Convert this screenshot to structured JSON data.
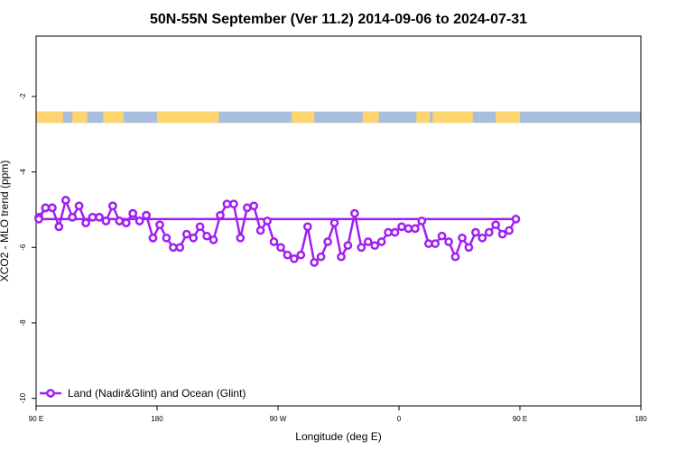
{
  "chart_data": {
    "type": "line",
    "title": "50N-55N September (Ver 11.2)   2014-09-06 to 2024-07-31",
    "xlabel": "Longitude (deg E)",
    "ylabel": "XCO2 - MLO trend (ppm)",
    "x_tick_labels": [
      "90 E",
      "180",
      "90 W",
      "0",
      "90 E",
      "180"
    ],
    "y_ticks": [
      -2,
      -4,
      -6,
      -8,
      -10
    ],
    "ylim": [
      -10.2,
      -0.4
    ],
    "grid": false,
    "legend": {
      "position": "bottom-left",
      "entries": [
        "Land (Nadir&Glint) and Ocean (Glint)"
      ]
    },
    "series": [
      {
        "name": "Land (Nadir&Glint) and Ocean (Glint)",
        "color": "#a020f0",
        "x": [
          92,
          97,
          102,
          107,
          112,
          117,
          122,
          127,
          132,
          137,
          142,
          147,
          152,
          157,
          162,
          167,
          172,
          177,
          182,
          187,
          192,
          197,
          202,
          207,
          212,
          217,
          222,
          227,
          232,
          237,
          242,
          247,
          252,
          257,
          262,
          267,
          272,
          277,
          282,
          287,
          292,
          297,
          302,
          307,
          312,
          317,
          322,
          327,
          332,
          337,
          342,
          347,
          352,
          357,
          2,
          7,
          12,
          17,
          22,
          27,
          32,
          37,
          42,
          47,
          52,
          57,
          62,
          67,
          72,
          77,
          82,
          87,
          92,
          97,
          102,
          107,
          112,
          117,
          122,
          127,
          132,
          137,
          142,
          147,
          152,
          157,
          162,
          167,
          172,
          177
        ],
        "y": [
          -5.2,
          -4.95,
          -4.95,
          -5.45,
          -4.75,
          -5.2,
          -4.9,
          -5.35,
          -5.2,
          -5.2,
          -5.3,
          -4.9,
          -5.3,
          -5.35,
          -5.1,
          -5.3,
          -5.15,
          -5.75,
          -5.4,
          -5.75,
          -6.0,
          -6.0,
          -5.65,
          -5.75,
          -5.45,
          -5.7,
          -5.8,
          -5.15,
          -4.85,
          -4.85,
          -5.75,
          -4.95,
          -4.9,
          -5.55,
          -5.3,
          -5.85,
          -6.0,
          -6.2,
          -6.3,
          -6.2,
          -5.45,
          -6.4,
          -6.25,
          -5.85,
          -5.35,
          -6.25,
          -5.95,
          -5.1,
          -6.0,
          -5.85,
          -5.95,
          -5.85,
          -5.6,
          -5.6,
          -5.45,
          -5.5,
          -5.5,
          -5.3,
          -5.9,
          -5.9,
          -5.7,
          -5.85,
          -6.25,
          -5.75,
          -6.0,
          -5.6,
          -5.75,
          -5.6,
          -5.4,
          -5.65,
          -5.55,
          -5.25,
          -5.25,
          -4.95,
          -4.95,
          -5.45,
          -4.75,
          -5.2,
          -4.9,
          -5.35,
          -5.2,
          -5.2,
          -5.3,
          -4.9,
          -5.3,
          -5.35,
          -5.1,
          -5.3,
          -5.15,
          -5.75
        ]
      }
    ],
    "surface_band": {
      "land_color": "#fcd56e",
      "ocean_color": "#a8bedc",
      "land_ranges": [
        [
          90,
          110
        ],
        [
          117,
          128
        ],
        [
          140,
          155
        ],
        [
          180,
          226
        ],
        [
          280,
          297
        ],
        [
          333,
          345
        ],
        [
          373,
          383
        ],
        [
          385,
          415
        ],
        [
          432,
          450
        ]
      ]
    }
  }
}
